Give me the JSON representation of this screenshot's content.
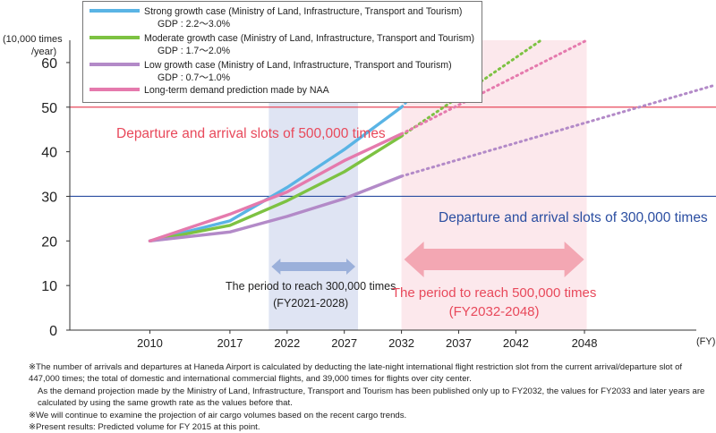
{
  "chart_data": {
    "type": "line",
    "y_unit_label": [
      "(10,000 times",
      "/year)"
    ],
    "x_unit_label": "(FY)",
    "ylim": [
      0,
      65
    ],
    "yticks": [
      0,
      10,
      20,
      30,
      40,
      50,
      60
    ],
    "xlim": [
      2003,
      2059.5
    ],
    "xticks": [
      2010,
      2017,
      2022,
      2027,
      2032,
      2037,
      2042,
      2048
    ],
    "grid": false,
    "legend_position": "top",
    "legend": [
      {
        "series": "strong",
        "label": "Strong growth case (Ministry of Land, Infrastructure, Transport and Tourism)",
        "sub": "GDP : 2.2～3.0%"
      },
      {
        "series": "moderate",
        "label": "Moderate growth case (Ministry of Land, Infrastructure, Transport and Tourism)",
        "sub": "GDP : 1.7～2.0%"
      },
      {
        "series": "low",
        "label": "Low growth case (Ministry of Land, Infrastructure, Transport and Tourism)",
        "sub": "GDP : 0.7～1.0%"
      },
      {
        "series": "naa",
        "label": "Long-term demand prediction made by NAA",
        "sub": ""
      }
    ],
    "series": [
      {
        "key": "strong",
        "color": "#5ab4e5",
        "solid": [
          [
            2010,
            20.0
          ],
          [
            2017,
            24.5
          ],
          [
            2022,
            32.0
          ],
          [
            2027,
            40.5
          ],
          [
            2032,
            50.0
          ]
        ],
        "dotted": [
          [
            2032,
            50.0
          ],
          [
            2037.6,
            65.0
          ]
        ]
      },
      {
        "key": "moderate",
        "color": "#7dc242",
        "solid": [
          [
            2010,
            20.0
          ],
          [
            2017,
            23.5
          ],
          [
            2022,
            29.0
          ],
          [
            2027,
            35.5
          ],
          [
            2032,
            43.5
          ]
        ],
        "dotted": [
          [
            2032,
            43.5
          ],
          [
            2044.2,
            65.0
          ]
        ]
      },
      {
        "key": "low",
        "color": "#b38ac8",
        "solid": [
          [
            2010,
            20.0
          ],
          [
            2017,
            22.0
          ],
          [
            2022,
            25.5
          ],
          [
            2027,
            29.5
          ],
          [
            2032,
            34.5
          ]
        ],
        "dotted": [
          [
            2032,
            34.5
          ],
          [
            2059.5,
            55.0
          ]
        ]
      },
      {
        "key": "naa",
        "color": "#e57aad",
        "solid": [
          [
            2010,
            20.0
          ],
          [
            2017,
            26.0
          ],
          [
            2022,
            31.0
          ],
          [
            2027,
            38.0
          ],
          [
            2032,
            44.0
          ]
        ],
        "dotted": [
          [
            2032,
            44.0
          ],
          [
            2048.2,
            65.0
          ]
        ]
      }
    ],
    "reference_lines": [
      {
        "y": 50,
        "color": "#e8495b",
        "label": "Departure and arrival slots of 500,000 times"
      },
      {
        "y": 30,
        "color": "#2b4ea1",
        "label": "Departure and arrival slots of 300,000 times"
      }
    ],
    "bands": [
      {
        "x0": 2020.4,
        "x1": 2028.2,
        "color": "#dfe4f3",
        "label": "The period to reach 300,000 times",
        "sublabel": "(FY2021-2028)",
        "arrow_color": "#9bb0da"
      },
      {
        "x0": 2032,
        "x1": 2048.2,
        "color": "#fce8ec",
        "label": "The period to reach 500,000 times",
        "sublabel": "(FY2032-2048)",
        "arrow_color": "#f3a7b3"
      }
    ]
  },
  "notes": [
    {
      "text": "※The number of arrivals and departures at Haneda Airport is calculated by deducting the late-night international flight restriction slot from the current arrival/departure slot of 447,000 times; the total of domestic and international commercial flights, and 39,000 times for flights over city center.",
      "indent": false
    },
    {
      "text": "As the demand projection made by the Ministry of Land, Infrastructure, Transport and Tourism has been published only up to FY2032, the values for FY2033 and later years are calculated by using the same growth rate as the values before that.",
      "indent": true
    },
    {
      "text": "※We will continue to examine the projection of air cargo volumes based on the recent cargo trends.",
      "indent": false
    },
    {
      "text": "※Present results: Predicted volume for FY 2015 at this point.",
      "indent": false
    }
  ]
}
